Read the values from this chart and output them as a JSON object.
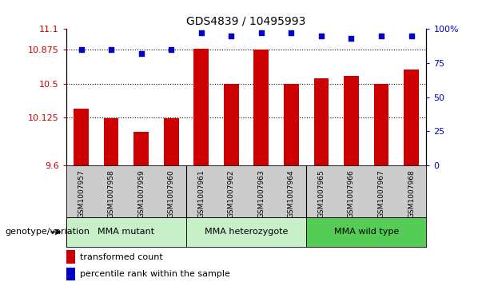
{
  "title": "GDS4839 / 10495993",
  "samples": [
    "GSM1007957",
    "GSM1007958",
    "GSM1007959",
    "GSM1007960",
    "GSM1007961",
    "GSM1007962",
    "GSM1007963",
    "GSM1007964",
    "GSM1007965",
    "GSM1007966",
    "GSM1007967",
    "GSM1007968"
  ],
  "bar_values": [
    10.22,
    10.12,
    9.97,
    10.12,
    10.88,
    10.5,
    10.87,
    10.5,
    10.56,
    10.58,
    10.5,
    10.65
  ],
  "percentile_values": [
    85,
    85,
    82,
    85,
    97,
    95,
    97,
    97,
    95,
    93,
    95,
    95
  ],
  "bar_color": "#cc0000",
  "dot_color": "#0000cc",
  "ylim_left": [
    9.6,
    11.1
  ],
  "ylim_right": [
    0,
    100
  ],
  "yticks_left": [
    9.6,
    10.125,
    10.5,
    10.875,
    11.1
  ],
  "ytick_labels_left": [
    "9.6",
    "10.125",
    "10.5",
    "10.875",
    "11.1"
  ],
  "yticks_right": [
    0,
    25,
    50,
    75,
    100
  ],
  "ytick_labels_right": [
    "0",
    "25",
    "50",
    "75",
    "100%"
  ],
  "grid_lines": [
    10.125,
    10.5,
    10.875
  ],
  "groups": [
    {
      "label": "MMA mutant",
      "start": 0,
      "end": 4,
      "color": "#c8f0c8"
    },
    {
      "label": "MMA heterozygote",
      "start": 4,
      "end": 8,
      "color": "#c8f0c8"
    },
    {
      "label": "MMA wild type",
      "start": 8,
      "end": 12,
      "color": "#55cc55"
    }
  ],
  "group_dividers": [
    4,
    8
  ],
  "xlabel_genotype": "genotype/variation",
  "legend_bar_label": "transformed count",
  "legend_dot_label": "percentile rank within the sample",
  "bar_width": 0.5,
  "tick_area_color": "#cccccc",
  "plot_bg_color": "#ffffff"
}
